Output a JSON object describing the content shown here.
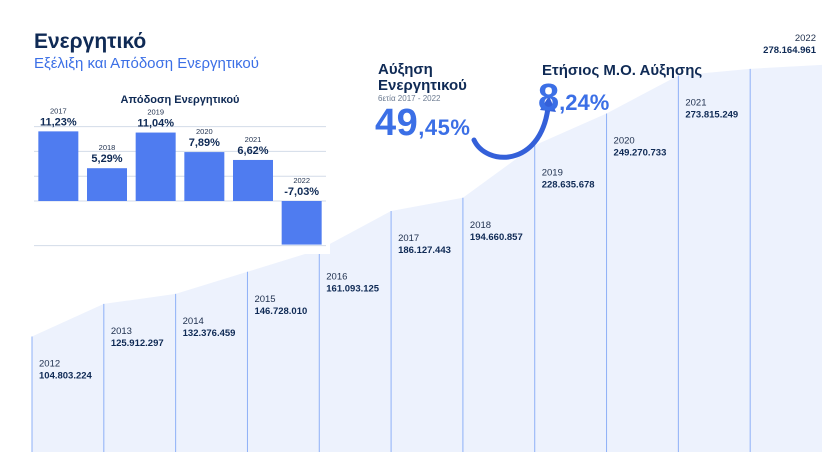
{
  "header": {
    "title": "Ενεργητικό",
    "subtitle": "Εξέλιξη και Απόδοση Ενεργητικού"
  },
  "growth": {
    "title": "Αύξηση Ενεργητικού",
    "period": "6ετία 2017 - 2022",
    "value_int": "49",
    "value_dec": ",45%"
  },
  "annual_growth": {
    "title": "Ετήσιος Μ.Ο. Αύξησης",
    "value_int": "8",
    "value_dec": ",24%"
  },
  "colors": {
    "bar": "#4f7cf0",
    "area": "#edf2fd",
    "line": "#8eb0f7",
    "dark_text": "#0f2a55",
    "accent": "#3b6fe6"
  },
  "chart_data": [
    {
      "type": "area",
      "title": "",
      "categories": [
        "2012",
        "2013",
        "2014",
        "2015",
        "2016",
        "2017",
        "2018",
        "2019",
        "2020",
        "2021",
        "2022"
      ],
      "value_labels": [
        "104.803.224",
        "125.912.297",
        "132.376.459",
        "146.728.010",
        "161.093.125",
        "186.127.443",
        "194.660.857",
        "228.635.678",
        "249.270.733",
        "273.815.249",
        "278.164.961"
      ],
      "values": [
        104803224,
        125912297,
        132376459,
        146728010,
        161093125,
        186127443,
        194660857,
        228635678,
        249270733,
        273815249,
        278164961
      ]
    },
    {
      "type": "bar",
      "title": "Απόδοση Ενεργητικού",
      "categories": [
        "2017",
        "2018",
        "2019",
        "2020",
        "2021",
        "2022"
      ],
      "values": [
        11.23,
        5.29,
        11.04,
        7.89,
        6.62,
        -7.03
      ],
      "value_labels": [
        "11,23%",
        "5,29%",
        "11,04%",
        "7,89%",
        "6,62%",
        "-7,03%"
      ]
    }
  ]
}
